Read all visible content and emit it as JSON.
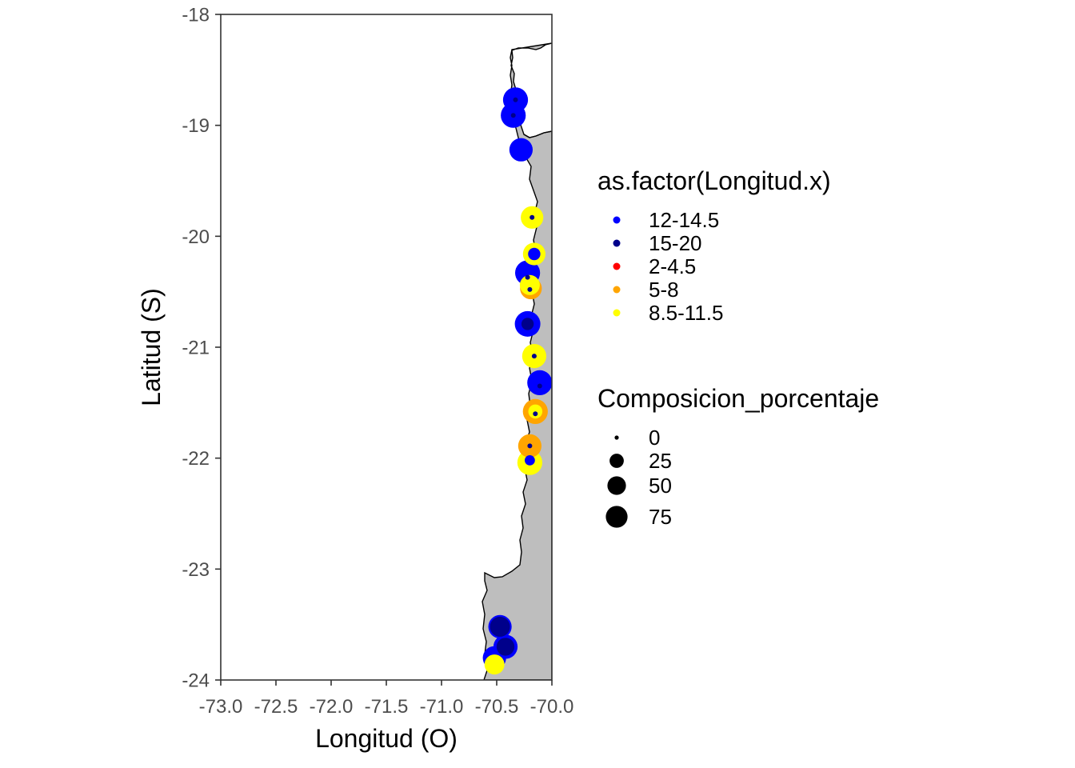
{
  "chart_data": {
    "type": "scatter",
    "subtype": "map",
    "xlabel": "Longitud (O)",
    "ylabel": "Latitud (S)",
    "xlim": [
      -73.0,
      -70.0
    ],
    "ylim": [
      -24,
      -18
    ],
    "x_ticks": [
      -73.0,
      -72.5,
      -72.0,
      -71.5,
      -71.0,
      -70.5,
      -70.0
    ],
    "x_tick_labels": [
      "-73.0",
      "-72.5",
      "-72.0",
      "-71.5",
      "-71.0",
      "-70.5",
      "-70.0"
    ],
    "y_ticks": [
      -18,
      -19,
      -20,
      -21,
      -22,
      -23,
      -24
    ],
    "y_tick_labels": [
      "-18",
      "-19",
      "-20",
      "-21",
      "-22",
      "-23",
      "-24"
    ],
    "grid": false,
    "legend_position": "right",
    "land_color": "#bebebe",
    "color_legend": {
      "title": "as.factor(Longitud.x)",
      "entries": [
        {
          "label": "12-14.5",
          "color": "#0000ff"
        },
        {
          "label": "15-20",
          "color": "#00008b"
        },
        {
          "label": "2-4.5",
          "color": "#ff0000"
        },
        {
          "label": "5-8",
          "color": "#ffa500"
        },
        {
          "label": "8.5-11.5",
          "color": "#ffff00"
        }
      ]
    },
    "size_legend": {
      "title": "Composicion_porcentaje",
      "entries": [
        {
          "label": "0",
          "value": 0
        },
        {
          "label": "25",
          "value": 25
        },
        {
          "label": "50",
          "value": 50
        },
        {
          "label": "75",
          "value": 75
        }
      ]
    },
    "points": [
      {
        "lon": -70.33,
        "lat": -18.77,
        "group": "12-14.5",
        "value": 70
      },
      {
        "lon": -70.33,
        "lat": -18.77,
        "group": "15-20",
        "value": 0
      },
      {
        "lon": -70.35,
        "lat": -18.91,
        "group": "12-14.5",
        "value": 70
      },
      {
        "lon": -70.35,
        "lat": -18.91,
        "group": "15-20",
        "value": 0
      },
      {
        "lon": -70.28,
        "lat": -19.22,
        "group": "12-14.5",
        "value": 60
      },
      {
        "lon": -70.18,
        "lat": -19.83,
        "group": "8.5-11.5",
        "value": 55
      },
      {
        "lon": -70.18,
        "lat": -19.83,
        "group": "15-20",
        "value": 0
      },
      {
        "lon": -70.16,
        "lat": -20.16,
        "group": "8.5-11.5",
        "value": 55
      },
      {
        "lon": -70.16,
        "lat": -20.16,
        "group": "12-14.5",
        "value": 10
      },
      {
        "lon": -70.19,
        "lat": -20.47,
        "group": "5-8",
        "value": 50
      },
      {
        "lon": -70.2,
        "lat": -20.44,
        "group": "8.5-11.5",
        "value": 40
      },
      {
        "lon": -70.22,
        "lat": -20.33,
        "group": "12-14.5",
        "value": 70
      },
      {
        "lon": -70.22,
        "lat": -20.37,
        "group": "15-20",
        "value": 0
      },
      {
        "lon": -70.2,
        "lat": -20.48,
        "group": "15-20",
        "value": 0
      },
      {
        "lon": -70.22,
        "lat": -20.79,
        "group": "12-14.5",
        "value": 75
      },
      {
        "lon": -70.22,
        "lat": -20.79,
        "group": "15-20",
        "value": 10
      },
      {
        "lon": -70.16,
        "lat": -21.08,
        "group": "8.5-11.5",
        "value": 65
      },
      {
        "lon": -70.16,
        "lat": -21.08,
        "group": "15-20",
        "value": 0
      },
      {
        "lon": -70.11,
        "lat": -21.32,
        "group": "12-14.5",
        "value": 70
      },
      {
        "lon": -70.11,
        "lat": -21.35,
        "group": "15-20",
        "value": 0
      },
      {
        "lon": -70.15,
        "lat": -21.58,
        "group": "5-8",
        "value": 70
      },
      {
        "lon": -70.15,
        "lat": -21.58,
        "group": "8.5-11.5",
        "value": 15
      },
      {
        "lon": -70.15,
        "lat": -21.6,
        "group": "15-20",
        "value": 0
      },
      {
        "lon": -70.2,
        "lat": -21.89,
        "group": "5-8",
        "value": 60
      },
      {
        "lon": -70.2,
        "lat": -21.89,
        "group": "15-20",
        "value": 0
      },
      {
        "lon": -70.2,
        "lat": -22.04,
        "group": "8.5-11.5",
        "value": 70
      },
      {
        "lon": -70.2,
        "lat": -22.02,
        "group": "12-14.5",
        "value": 5
      },
      {
        "lon": -70.47,
        "lat": -23.52,
        "group": "12-14.5",
        "value": 60
      },
      {
        "lon": -70.47,
        "lat": -23.52,
        "group": "15-20",
        "value": 40
      },
      {
        "lon": -70.42,
        "lat": -23.7,
        "group": "12-14.5",
        "value": 65
      },
      {
        "lon": -70.42,
        "lat": -23.7,
        "group": "15-20",
        "value": 30
      },
      {
        "lon": -70.52,
        "lat": -23.86,
        "group": "8.5-11.5",
        "value": 40
      },
      {
        "lon": -70.52,
        "lat": -23.8,
        "group": "12-14.5",
        "value": 60
      }
    ]
  }
}
